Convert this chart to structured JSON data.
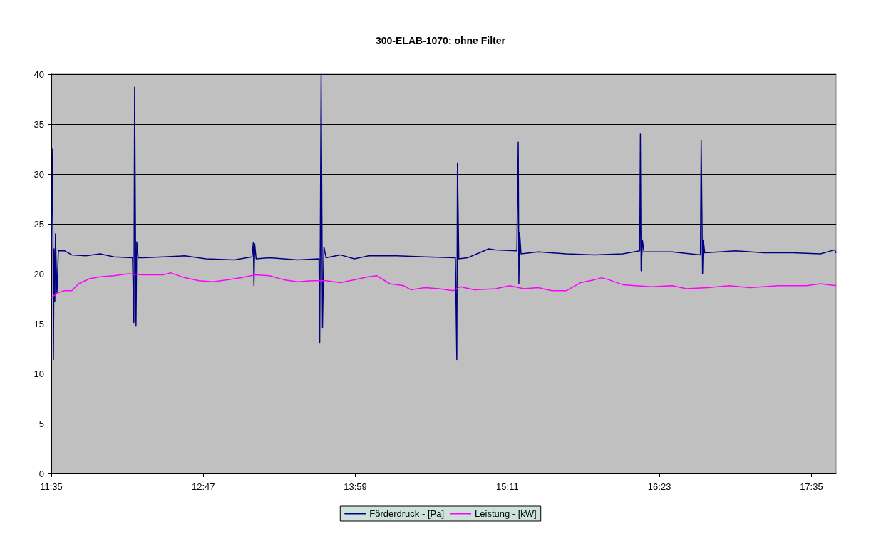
{
  "chart_data": {
    "type": "line",
    "title": "300-ELAB-1070: ohne Filter",
    "xlim": [
      11.5833,
      17.778
    ],
    "xticks": [
      {
        "value": 11.5833,
        "label": "11:35"
      },
      {
        "value": 12.7833,
        "label": "12:47"
      },
      {
        "value": 13.9833,
        "label": "13:59"
      },
      {
        "value": 15.1833,
        "label": "15:11"
      },
      {
        "value": 16.3833,
        "label": "16:23"
      },
      {
        "value": 17.5833,
        "label": "17:35"
      }
    ],
    "ylim": [
      0,
      40
    ],
    "yticks": [
      0,
      5,
      10,
      15,
      20,
      25,
      30,
      35,
      40
    ],
    "grid": "y",
    "legend": "bottom",
    "marker": "none",
    "line_style": "solid",
    "series": [
      {
        "name": "Förderdruck - [Pa]",
        "color": "#000080",
        "x": [
          11.5833,
          11.594,
          11.6,
          11.605,
          11.611,
          11.616,
          11.628,
          11.639,
          11.689,
          11.745,
          11.856,
          11.968,
          12.079,
          12.224,
          12.235,
          12.241,
          12.252,
          12.258,
          12.269,
          12.302,
          12.47,
          12.637,
          12.804,
          13.027,
          13.167,
          13.178,
          13.183,
          13.189,
          13.2,
          13.306,
          13.529,
          13.696,
          13.702,
          13.713,
          13.724,
          13.735,
          13.752,
          13.864,
          13.975,
          14.087,
          14.31,
          14.533,
          14.773,
          14.784,
          14.789,
          14.8,
          14.867,
          14.979,
          15.035,
          15.09,
          15.258,
          15.269,
          15.274,
          15.28,
          15.291,
          15.425,
          15.648,
          15.871,
          16.094,
          16.228,
          16.233,
          16.239,
          16.25,
          16.261,
          16.484,
          16.707,
          16.713,
          16.724,
          16.73,
          16.741,
          16.986,
          17.209,
          17.432,
          17.655,
          17.767,
          17.778
        ],
        "values": [
          22.3,
          32.5,
          11.4,
          22.5,
          17.2,
          24,
          18,
          22.3,
          22.3,
          21.9,
          21.8,
          22,
          21.7,
          21.6,
          15.1,
          38.7,
          14.8,
          23.2,
          21.6,
          21.6,
          21.7,
          21.8,
          21.5,
          21.4,
          21.7,
          23.1,
          18.8,
          23,
          21.5,
          21.6,
          21.4,
          21.5,
          13.1,
          40,
          14.6,
          22.7,
          21.6,
          21.9,
          21.5,
          21.8,
          21.8,
          21.7,
          21.6,
          11.4,
          31.1,
          21.5,
          21.6,
          22.2,
          22.5,
          22.4,
          22.3,
          33.2,
          19,
          24.1,
          22,
          22.2,
          22,
          21.9,
          22,
          22.3,
          34,
          20.3,
          23.3,
          22.2,
          22.2,
          21.9,
          33.4,
          20,
          23.4,
          22.1,
          22.3,
          22.1,
          22.1,
          22,
          22.4,
          22.1
        ]
      },
      {
        "name": "Leistung - [kW]",
        "color": "#ff00ff",
        "x": [
          11.5833,
          11.633,
          11.689,
          11.745,
          11.8,
          11.884,
          11.968,
          12.079,
          12.191,
          12.302,
          12.47,
          12.525,
          12.637,
          12.749,
          12.86,
          12.972,
          13.083,
          13.195,
          13.306,
          13.418,
          13.529,
          13.641,
          13.752,
          13.864,
          13.975,
          14.087,
          14.154,
          14.254,
          14.365,
          14.421,
          14.533,
          14.644,
          14.756,
          14.812,
          14.923,
          15.09,
          15.202,
          15.313,
          15.425,
          15.537,
          15.648,
          15.76,
          15.871,
          15.927,
          15.983,
          16.094,
          16.317,
          16.484,
          16.596,
          16.763,
          16.931,
          17.098,
          17.321,
          17.544,
          17.655,
          17.778
        ],
        "values": [
          17.6,
          18.1,
          18.3,
          18.3,
          19,
          19.5,
          19.7,
          19.8,
          20,
          19.9,
          19.9,
          20.1,
          19.6,
          19.3,
          19.2,
          19.4,
          19.6,
          19.9,
          19.8,
          19.4,
          19.2,
          19.3,
          19.3,
          19.1,
          19.4,
          19.7,
          19.8,
          19,
          18.8,
          18.4,
          18.6,
          18.5,
          18.3,
          18.7,
          18.4,
          18.5,
          18.8,
          18.5,
          18.6,
          18.3,
          18.3,
          19.1,
          19.4,
          19.6,
          19.4,
          18.9,
          18.7,
          18.8,
          18.5,
          18.6,
          18.8,
          18.6,
          18.8,
          18.8,
          19,
          18.8
        ]
      }
    ]
  }
}
